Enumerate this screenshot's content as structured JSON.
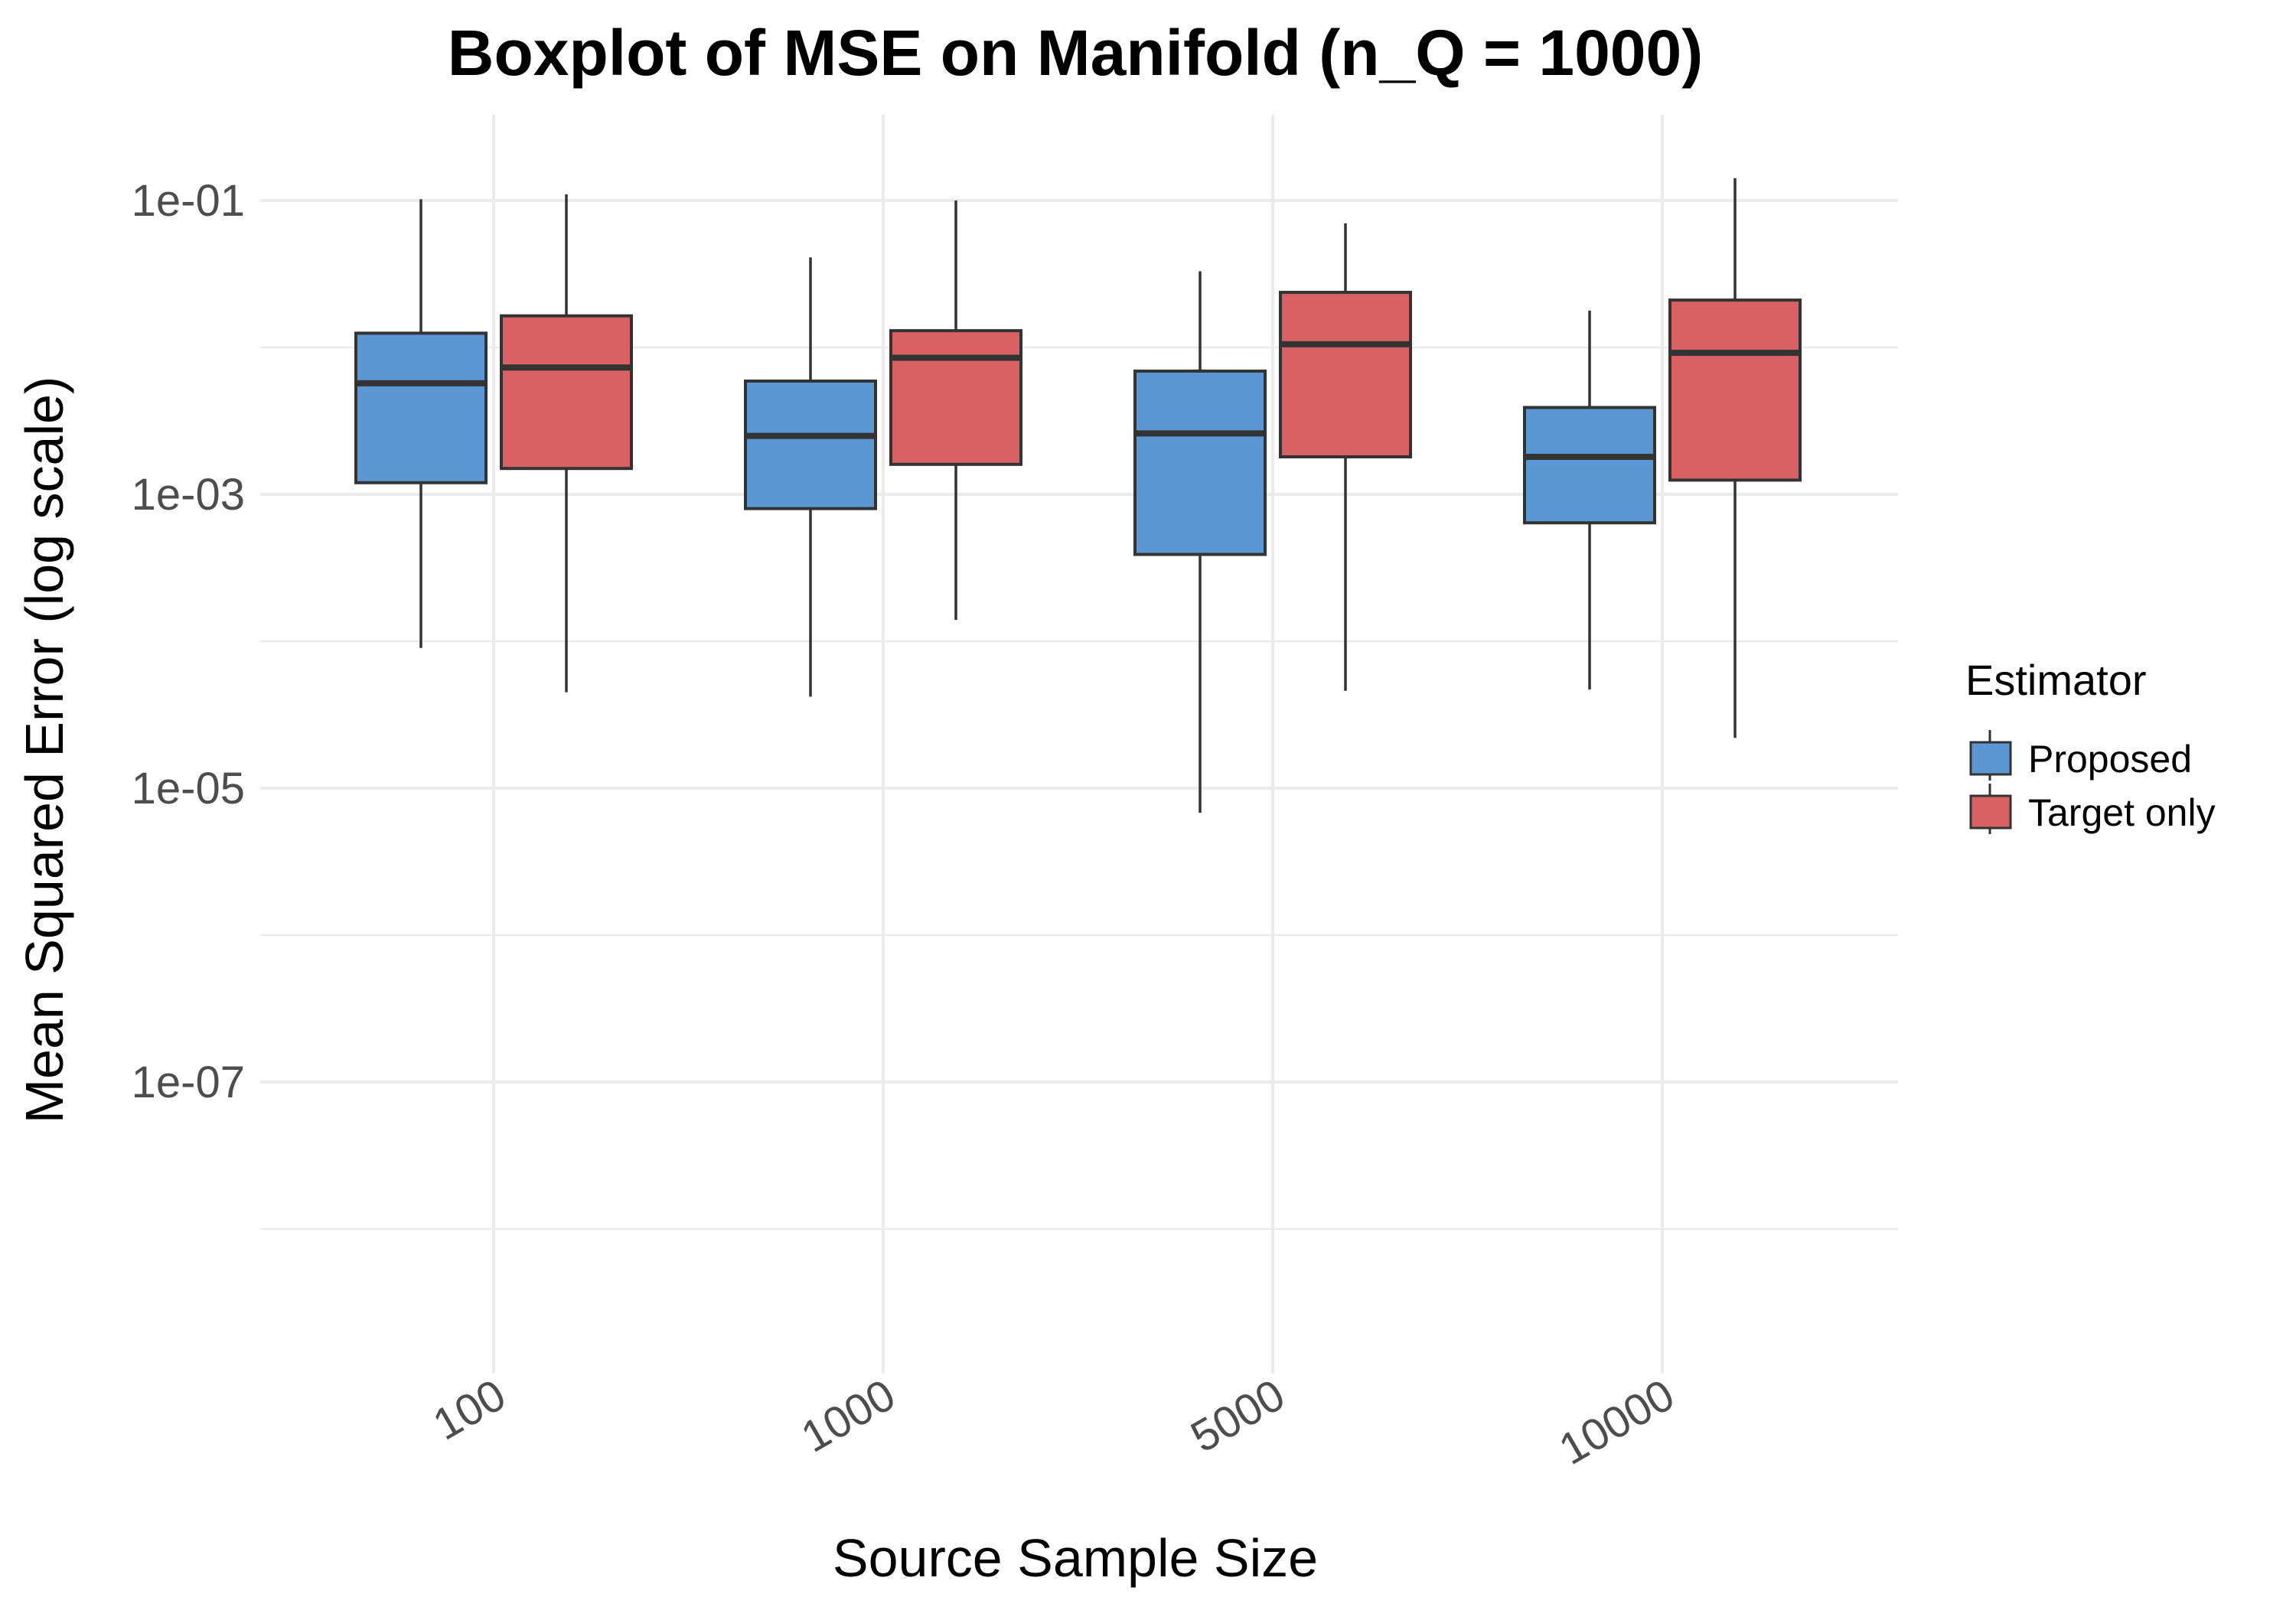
{
  "chart_data": {
    "type": "boxplot",
    "title": "Boxplot of MSE on Manifold (n_Q = 1000)",
    "xlabel": "Source Sample Size",
    "ylabel": "Mean Squared Error (log scale)",
    "y_scale": "log10",
    "ylim": [
      3e-09,
      0.6
    ],
    "y_ticks": [
      {
        "value": 0.1,
        "label": "1e-01"
      },
      {
        "value": 0.001,
        "label": "1e-03"
      },
      {
        "value": 1e-05,
        "label": "1e-05"
      },
      {
        "value": 1e-07,
        "label": "1e-07"
      }
    ],
    "y_minor_ticks": [
      0.01,
      0.0001,
      1e-06,
      1e-08
    ],
    "categories": [
      "100",
      "1000",
      "5000",
      "10000"
    ],
    "grid": true,
    "legend": {
      "title": "Estimator",
      "placement": "right"
    },
    "series": [
      {
        "name": "Proposed",
        "color": "#5b97d3",
        "boxes": [
          {
            "category": "100",
            "whisker_low": 9e-05,
            "q1": 0.0012,
            "median": 0.0057,
            "q3": 0.0125,
            "whisker_high": 0.102
          },
          {
            "category": "1000",
            "whisker_low": 4.2e-05,
            "q1": 0.0008,
            "median": 0.0025,
            "q3": 0.0059,
            "whisker_high": 0.041
          },
          {
            "category": "5000",
            "whisker_low": 6.8e-06,
            "q1": 0.00039,
            "median": 0.0026,
            "q3": 0.0069,
            "whisker_high": 0.033
          },
          {
            "category": "10000",
            "whisker_low": 4.7e-05,
            "q1": 0.00064,
            "median": 0.0018,
            "q3": 0.0039,
            "whisker_high": 0.0178
          }
        ]
      },
      {
        "name": "Target only",
        "color": "#d96163",
        "boxes": [
          {
            "category": "100",
            "whisker_low": 4.5e-05,
            "q1": 0.0015,
            "median": 0.0073,
            "q3": 0.0164,
            "whisker_high": 0.11
          },
          {
            "category": "1000",
            "whisker_low": 0.00014,
            "q1": 0.0016,
            "median": 0.0085,
            "q3": 0.013,
            "whisker_high": 0.1
          },
          {
            "category": "5000",
            "whisker_low": 4.6e-05,
            "q1": 0.0018,
            "median": 0.0105,
            "q3": 0.0237,
            "whisker_high": 0.07
          },
          {
            "category": "10000",
            "whisker_low": 2.2e-05,
            "q1": 0.00125,
            "median": 0.0092,
            "q3": 0.021,
            "whisker_high": 0.142
          }
        ]
      }
    ]
  }
}
